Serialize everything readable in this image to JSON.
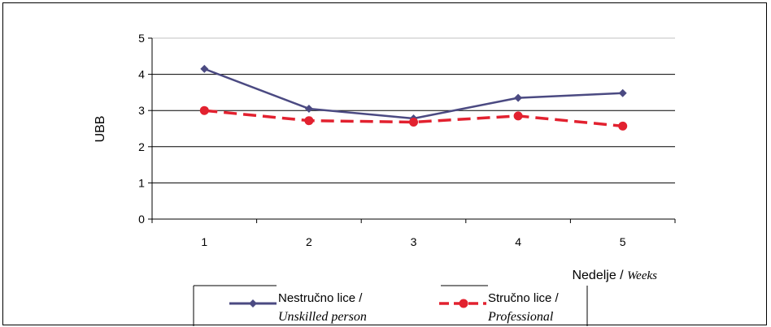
{
  "chart_data": {
    "type": "line",
    "ylabel": "UBB",
    "xlabel_main": "Nedelje / ",
    "xlabel_italic": "Weeks",
    "categories": [
      "1",
      "2",
      "3",
      "4",
      "5"
    ],
    "yticks": [
      "0",
      "1",
      "2",
      "3",
      "4",
      "5"
    ],
    "ylim": [
      0,
      5
    ],
    "grid": "horizontal",
    "legend_position": "bottom",
    "series": [
      {
        "name_main": "Nestručno lice /",
        "name_italic": "Unskilled person",
        "values": [
          4.15,
          3.05,
          2.78,
          3.35,
          3.48
        ],
        "color": "#4b4a82",
        "marker": "diamond",
        "line_style": "solid"
      },
      {
        "name_main": "Stručno lice /",
        "name_italic": "Professional",
        "values": [
          3.0,
          2.72,
          2.68,
          2.85,
          2.57
        ],
        "color": "#e2212f",
        "marker": "circle",
        "line_style": "dashed"
      }
    ]
  }
}
